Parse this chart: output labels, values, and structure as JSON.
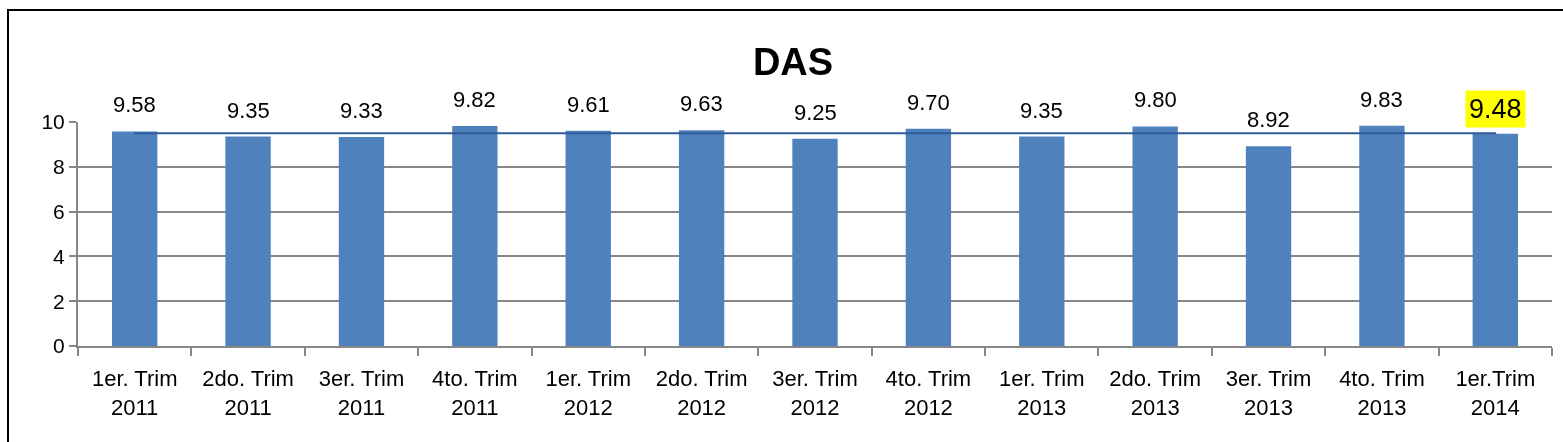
{
  "chart_data": {
    "type": "bar",
    "title": "DAS",
    "categories": [
      "1er. Trim 2011",
      "2do. Trim 2011",
      "3er. Trim 2011",
      "4to. Trim 2011",
      "1er. Trim 2012",
      "2do. Trim 2012",
      "3er. Trim 2012",
      "4to. Trim 2012",
      "1er. Trim 2013",
      "2do. Trim 2013",
      "3er. Trim 2013",
      "4to. Trim 2013",
      "1er.Trim 2014"
    ],
    "series": [
      {
        "color": "#4f81bd",
        "values": [
          9.58,
          9.35,
          9.33,
          9.82,
          9.61,
          9.63,
          9.25,
          9.7,
          9.35,
          9.8,
          8.92,
          9.83,
          9.48
        ],
        "value_labels": [
          "9.58",
          "9.35",
          "9.33",
          "9.82",
          "9.61",
          "9.63",
          "9.25",
          "9.70",
          "9.35",
          "9.80",
          "8.92",
          "9.83",
          null
        ]
      },
      {
        "type": "line",
        "color": "#2f5c98",
        "values": [
          9.5,
          9.5,
          9.5,
          9.5,
          9.5,
          9.5,
          9.5,
          9.5,
          9.5,
          9.5,
          9.5,
          9.5,
          9.5
        ]
      }
    ],
    "annotations": [
      {
        "text": "9.48",
        "x": "1er.Trim 2014",
        "y": 9.48
      }
    ],
    "ylim": [
      0,
      10
    ],
    "yticks": [
      0,
      2,
      4,
      6,
      8,
      10
    ],
    "grid": "y"
  }
}
